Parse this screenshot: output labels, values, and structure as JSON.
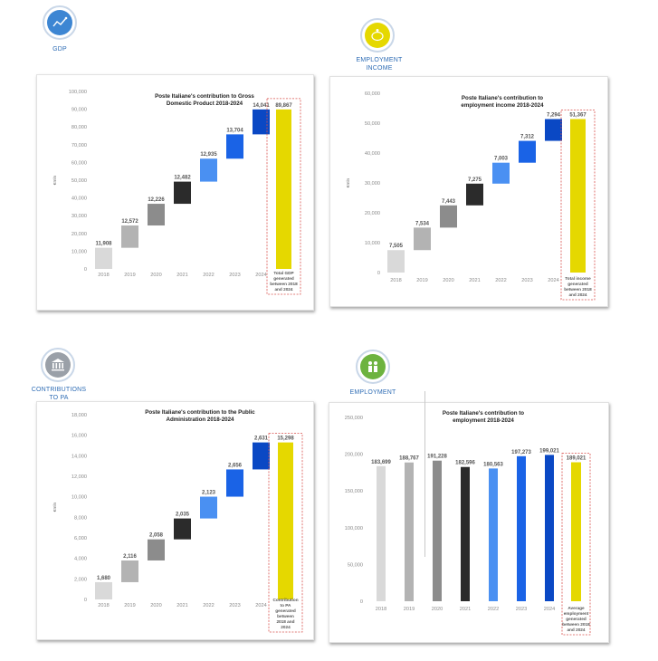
{
  "sections": [
    {
      "label": [
        "GDP"
      ],
      "icon": "line-chart-icon",
      "color": "#3d86d3",
      "chart_data": {
        "type": "waterfall",
        "title": [
          "Poste Italiane's contribution to Gross",
          "Domestic Product 2018-2024"
        ],
        "ylabel": "€mln",
        "ylim": [
          0,
          100000
        ],
        "yticks": [
          "0",
          "10,000",
          "20,000",
          "30,000",
          "40,000",
          "50,000",
          "60,000",
          "70,000",
          "80,000",
          "90,000",
          "100,000"
        ],
        "categories": [
          "2018",
          "2019",
          "2020",
          "2021",
          "2022",
          "2023",
          "2024"
        ],
        "values": [
          11908,
          12572,
          12226,
          12482,
          12935,
          13704,
          14041
        ],
        "value_labels": [
          "11,908",
          "12,572",
          "12,226",
          "12,482",
          "12,935",
          "13,704",
          "14,041"
        ],
        "total": 89867,
        "total_label": "89,867",
        "total_note": [
          "Total GDP",
          "generated",
          "between 2018",
          "and 2024"
        ]
      }
    },
    {
      "label": [
        "EMPLOYMENT",
        "INCOME"
      ],
      "icon": "piggy-bank-icon",
      "color": "#e5d800",
      "chart_data": {
        "type": "waterfall",
        "title": [
          "Poste Italiane's contribution to",
          "employment income 2018-2024"
        ],
        "ylabel": "€mln",
        "ylim": [
          0,
          60000
        ],
        "yticks": [
          "0",
          "10,000",
          "20,000",
          "30,000",
          "40,000",
          "50,000",
          "60,000"
        ],
        "categories": [
          "2018",
          "2019",
          "2020",
          "2021",
          "2022",
          "2023",
          "2024"
        ],
        "values": [
          7505,
          7534,
          7443,
          7275,
          7003,
          7312,
          7294
        ],
        "value_labels": [
          "7,505",
          "7,534",
          "7,443",
          "7,275",
          "7,003",
          "7,312",
          "7,294"
        ],
        "total": 51367,
        "total_label": "51,367",
        "total_note": [
          "Total income",
          "generated",
          "between 2018",
          "and 2024"
        ]
      }
    },
    {
      "label": [
        "CONTRIBUTIONS",
        "TO PA"
      ],
      "icon": "government-building-icon",
      "color": "#9aa0a8",
      "chart_data": {
        "type": "waterfall",
        "title": [
          "Poste Italiane's contribution to the Public",
          "Administration 2018-2024"
        ],
        "ylabel": "€mln",
        "ylim": [
          0,
          18000
        ],
        "yticks": [
          "0",
          "2,000",
          "4,000",
          "6,000",
          "8,000",
          "10,000",
          "12,000",
          "14,000",
          "16,000",
          "18,000"
        ],
        "categories": [
          "2018",
          "2019",
          "2020",
          "2021",
          "2022",
          "2023",
          "2024"
        ],
        "values": [
          1680,
          2116,
          2058,
          2035,
          2123,
          2656,
          2631
        ],
        "value_labels": [
          "1,680",
          "2,116",
          "2,058",
          "2,035",
          "2,123",
          "2,656",
          "2,631"
        ],
        "total": 15298,
        "total_label": "15,298",
        "total_note": [
          "Contribution",
          "to PA",
          "generated",
          "between",
          "2018 and",
          "2024"
        ]
      }
    },
    {
      "label": [
        "EMPLOYMENT"
      ],
      "icon": "people-icon",
      "color": "#6db33f",
      "chart_data": {
        "type": "bar",
        "title": [
          "Poste Italiane's contribution to",
          "employment 2018-2024"
        ],
        "ylabel": "",
        "ylim": [
          0,
          250000
        ],
        "yticks": [
          "0",
          "50,000",
          "100,000",
          "150,000",
          "200,000",
          "250,000"
        ],
        "categories": [
          "2018",
          "2019",
          "2020",
          "2021",
          "2022",
          "2023",
          "2024"
        ],
        "values": [
          183699,
          188767,
          191228,
          182596,
          180563,
          197273,
          199021
        ],
        "value_labels": [
          "183,699",
          "188,767",
          "191,228",
          "182,596",
          "180,563",
          "197,273",
          "199,021"
        ],
        "total": 189021,
        "total_label": "189,021",
        "total_note": [
          "Average",
          "employment",
          "generated",
          "between 2018",
          "and 2024"
        ]
      }
    }
  ],
  "colors": {
    "bars": [
      "#d9d9d9",
      "#b3b3b3",
      "#8c8c8c",
      "#2b2b2b",
      "#4a90f2",
      "#1a63e6",
      "#0a48c4"
    ],
    "total": "#e5d800",
    "dash": "#d9534f"
  }
}
